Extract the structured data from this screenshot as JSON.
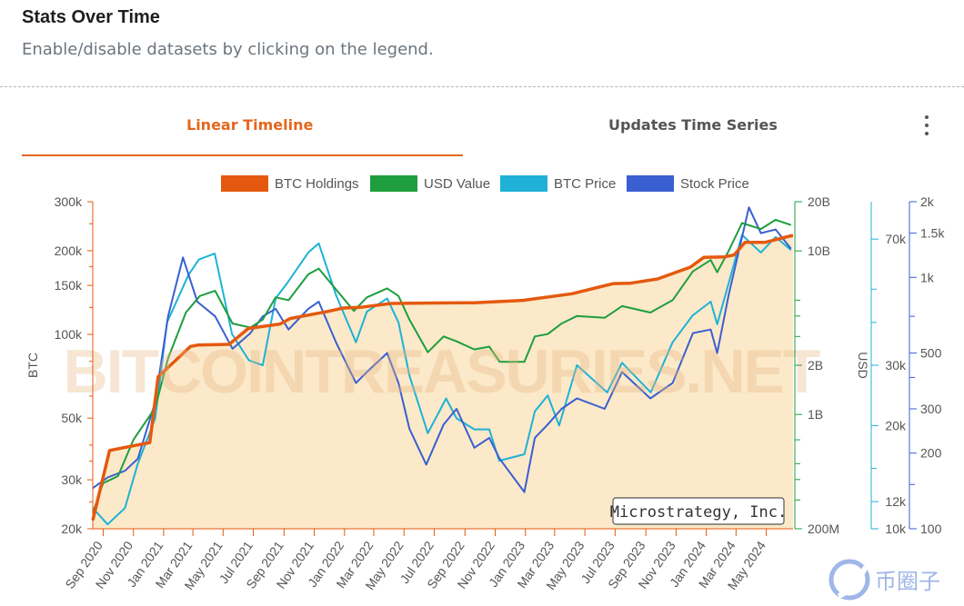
{
  "header": {
    "title": "Stats Over Time",
    "subtitle": "Enable/disable datasets by clicking on the legend."
  },
  "tabs": [
    {
      "label": "Linear Timeline",
      "active": true
    },
    {
      "label": "Updates Time Series",
      "active": false
    }
  ],
  "watermark": "BITCOINTREASURIES.NET",
  "corner_logo_text": "币圈子",
  "colors": {
    "accent": "#e4671e",
    "btc_holdings": "#e4590f",
    "usd_value": "#1e9e3e",
    "btc_price": "#1fb2d6",
    "stock_price": "#3a5fd0",
    "fill": "#fbe9c9"
  },
  "chart_data": {
    "type": "line",
    "company_label": "Microstrategy, Inc.",
    "legend": [
      "BTC Holdings",
      "USD Value",
      "BTC Price",
      "Stock Price"
    ],
    "x_ticks": [
      "Sep 2020",
      "Nov 2020",
      "Jan 2021",
      "Mar 2021",
      "May 2021",
      "Jul 2021",
      "Sep 2021",
      "Nov 2021",
      "Jan 2022",
      "Mar 2022",
      "May 2022",
      "Jul 2022",
      "Sep 2022",
      "Nov 2022",
      "Jan 2023",
      "Mar 2023",
      "May 2023",
      "Jul 2023",
      "Sep 2023",
      "Nov 2023",
      "Jan 2024",
      "Mar 2024",
      "May 2024"
    ],
    "axes": {
      "btc": {
        "label": "BTC",
        "scale": "log",
        "range": [
          20000,
          300000
        ],
        "ticks": [
          {
            "v": 300000,
            "t": "300k"
          },
          {
            "v": 200000,
            "t": "200k"
          },
          {
            "v": 150000,
            "t": "150k"
          },
          {
            "v": 100000,
            "t": "100k"
          },
          {
            "v": 50000,
            "t": "50k"
          },
          {
            "v": 30000,
            "t": "30k"
          },
          {
            "v": 20000,
            "t": "20k"
          }
        ]
      },
      "usd": {
        "label": "USD",
        "scale": "log",
        "range": [
          200000000,
          20000000000
        ],
        "ticks": [
          {
            "v": 20000000000,
            "t": "20B"
          },
          {
            "v": 10000000000,
            "t": "10B"
          },
          {
            "v": 2000000000,
            "t": "2B"
          },
          {
            "v": 1000000000,
            "t": "1B"
          },
          {
            "v": 200000000,
            "t": "200M"
          }
        ]
      },
      "btc_price": {
        "label": "",
        "scale": "log",
        "range": [
          10000,
          90000
        ],
        "ticks": [
          {
            "v": 70000,
            "t": "70k"
          },
          {
            "v": 30000,
            "t": "30k"
          },
          {
            "v": 20000,
            "t": "20k"
          },
          {
            "v": 12000,
            "t": "12k"
          },
          {
            "v": 10000,
            "t": "10k"
          }
        ]
      },
      "stock_price": {
        "label": "",
        "scale": "log",
        "range": [
          100,
          2000
        ],
        "ticks": [
          {
            "v": 2000,
            "t": "2k"
          },
          {
            "v": 1500,
            "t": "1.5k"
          },
          {
            "v": 1000,
            "t": "1k"
          },
          {
            "v": 500,
            "t": "500"
          },
          {
            "v": 300,
            "t": "300"
          },
          {
            "v": 200,
            "t": "200"
          },
          {
            "v": 100,
            "t": "100"
          }
        ]
      }
    },
    "series": [
      {
        "name": "BTC Holdings",
        "axis": "btc",
        "x": [
          "2020-08-11",
          "2020-09-14",
          "2020-12-04",
          "2020-12-21",
          "2021-02-24",
          "2021-03-12",
          "2021-05-13",
          "2021-06-21",
          "2021-08-24",
          "2021-09-13",
          "2021-11-29",
          "2021-12-30",
          "2022-02-01",
          "2022-04-05",
          "2022-06-28",
          "2022-09-20",
          "2022-12-27",
          "2023-04-05",
          "2023-06-28",
          "2023-08-01",
          "2023-09-25",
          "2023-11-30",
          "2023-12-27",
          "2024-02-06",
          "2024-02-26",
          "2024-03-19",
          "2024-04-29",
          "2024-06-20"
        ],
        "values": [
          21454,
          38250,
          40824,
          70470,
          90531,
          91579,
          92079,
          105085,
          108992,
          114042,
          121044,
          124391,
          125051,
          129218,
          129699,
          130000,
          132500,
          140000,
          152333,
          152800,
          158245,
          174530,
          189150,
          190000,
          193000,
          214246,
          214400,
          226331
        ]
      },
      {
        "name": "USD Value",
        "axis": "usd",
        "x": [
          "2020-08-11",
          "2020-09-01",
          "2020-10-01",
          "2020-11-01",
          "2020-12-15",
          "2021-01-10",
          "2021-02-15",
          "2021-03-15",
          "2021-04-15",
          "2021-05-20",
          "2021-06-25",
          "2021-07-20",
          "2021-08-15",
          "2021-09-10",
          "2021-10-20",
          "2021-11-10",
          "2021-12-15",
          "2022-01-20",
          "2022-02-15",
          "2022-03-28",
          "2022-04-20",
          "2022-05-12",
          "2022-06-18",
          "2022-07-20",
          "2022-08-15",
          "2022-09-20",
          "2022-10-20",
          "2022-11-10",
          "2022-12-30",
          "2023-01-20",
          "2023-02-15",
          "2023-03-15",
          "2023-04-15",
          "2023-06-10",
          "2023-07-15",
          "2023-09-10",
          "2023-10-25",
          "2023-12-05",
          "2024-01-10",
          "2024-01-23",
          "2024-02-15",
          "2024-03-13",
          "2024-04-20",
          "2024-05-20",
          "2024-06-20"
        ],
        "values": [
          250000000,
          380000000,
          420000000,
          700000000,
          1100000000,
          2200000000,
          4200000000,
          5300000000,
          5700000000,
          3600000000,
          3400000000,
          3800000000,
          5200000000,
          5000000000,
          7200000000,
          7800000000,
          5800000000,
          4300000000,
          5200000000,
          5900000000,
          5300000000,
          3800000000,
          2400000000,
          3000000000,
          2800000000,
          2500000000,
          2600000000,
          2100000000,
          2100000000,
          3000000000,
          3100000000,
          3600000000,
          4000000000,
          3900000000,
          4600000000,
          4200000000,
          5000000000,
          7500000000,
          8800000000,
          7400000000,
          10000000000,
          14800000000,
          13600000000,
          15500000000,
          14400000000
        ]
      },
      {
        "name": "BTC Price",
        "axis": "btc_price",
        "x": [
          "2020-08-11",
          "2020-09-10",
          "2020-10-15",
          "2020-11-10",
          "2020-12-15",
          "2021-01-08",
          "2021-02-20",
          "2021-03-13",
          "2021-04-14",
          "2021-05-19",
          "2021-06-22",
          "2021-07-20",
          "2021-08-15",
          "2021-09-07",
          "2021-10-20",
          "2021-11-10",
          "2021-12-15",
          "2022-01-24",
          "2022-02-15",
          "2022-03-28",
          "2022-04-20",
          "2022-05-12",
          "2022-06-18",
          "2022-07-25",
          "2022-08-15",
          "2022-09-20",
          "2022-10-20",
          "2022-11-09",
          "2022-12-30",
          "2023-01-20",
          "2023-02-15",
          "2023-03-10",
          "2023-04-15",
          "2023-06-15",
          "2023-07-15",
          "2023-09-11",
          "2023-10-25",
          "2023-12-05",
          "2024-01-10",
          "2024-01-23",
          "2024-02-15",
          "2024-03-13",
          "2024-04-20",
          "2024-05-20",
          "2024-06-20"
        ],
        "values": [
          11500,
          10300,
          11500,
          15500,
          21000,
          40000,
          55000,
          61000,
          63500,
          37000,
          31000,
          30000,
          47000,
          52000,
          64000,
          68000,
          48000,
          35000,
          43000,
          47000,
          40000,
          28000,
          19000,
          24000,
          21000,
          19500,
          19500,
          15800,
          16500,
          22000,
          24500,
          20000,
          30000,
          25000,
          30500,
          25000,
          35000,
          42000,
          46000,
          39500,
          52000,
          72000,
          64000,
          71000,
          65000
        ]
      },
      {
        "name": "Stock Price",
        "axis": "stock_price",
        "x": [
          "2020-08-11",
          "2020-09-10",
          "2020-10-15",
          "2020-11-10",
          "2020-12-15",
          "2021-01-10",
          "2021-02-09",
          "2021-03-10",
          "2021-04-15",
          "2021-05-20",
          "2021-06-25",
          "2021-07-20",
          "2021-08-15",
          "2021-09-10",
          "2021-10-20",
          "2021-11-10",
          "2021-12-15",
          "2022-01-24",
          "2022-02-15",
          "2022-03-28",
          "2022-04-20",
          "2022-05-12",
          "2022-06-15",
          "2022-07-20",
          "2022-08-15",
          "2022-09-20",
          "2022-10-20",
          "2022-11-10",
          "2022-12-30",
          "2023-01-20",
          "2023-02-15",
          "2023-03-15",
          "2023-04-15",
          "2023-06-10",
          "2023-07-15",
          "2023-09-10",
          "2023-10-25",
          "2023-12-05",
          "2024-01-10",
          "2024-01-23",
          "2024-02-15",
          "2024-03-27",
          "2024-04-20",
          "2024-05-20",
          "2024-06-20"
        ],
        "values": [
          145,
          160,
          170,
          190,
          320,
          700,
          1200,
          800,
          700,
          520,
          600,
          700,
          750,
          620,
          750,
          800,
          550,
          380,
          420,
          500,
          380,
          250,
          180,
          260,
          300,
          210,
          230,
          190,
          140,
          230,
          260,
          300,
          330,
          300,
          420,
          330,
          380,
          600,
          620,
          500,
          850,
          1900,
          1500,
          1550,
          1300
        ]
      }
    ]
  }
}
